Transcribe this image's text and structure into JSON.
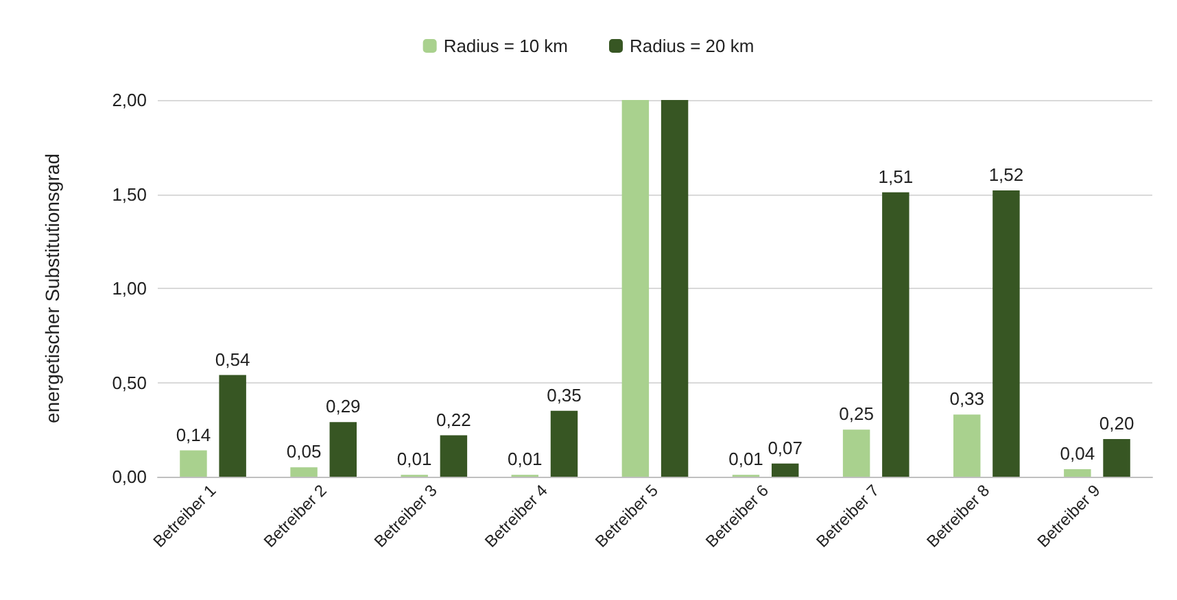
{
  "chart_data": {
    "type": "bar",
    "ylabel": "energetischer Substitutionsgrad",
    "categories": [
      "Betreiber 1",
      "Betreiber 2",
      "Betreiber 3",
      "Betreiber 4",
      "Betreiber 5",
      "Betreiber 6",
      "Betreiber 7",
      "Betreiber 8",
      "Betreiber 9"
    ],
    "series": [
      {
        "name": "Radius = 10 km",
        "color": "#a9d18e",
        "values": [
          0.14,
          0.05,
          0.01,
          0.01,
          2.0,
          0.01,
          0.25,
          0.33,
          0.04
        ],
        "value_labels": [
          "0,14",
          "0,05",
          "0,01",
          "0,01",
          null,
          "0,01",
          "0,25",
          "0,33",
          "0,04"
        ]
      },
      {
        "name": "Radius = 20 km",
        "color": "#375623",
        "values": [
          0.54,
          0.29,
          0.22,
          0.35,
          2.0,
          0.07,
          1.51,
          1.52,
          0.2
        ],
        "value_labels": [
          "0,54",
          "0,29",
          "0,22",
          "0,35",
          null,
          "0,07",
          "1,51",
          "1,52",
          "0,20"
        ]
      }
    ],
    "ylim": [
      0,
      2
    ],
    "yticks": [
      {
        "value": 0,
        "label": "0,00"
      },
      {
        "value": 0.5,
        "label": "0,50"
      },
      {
        "value": 1,
        "label": "1,00"
      },
      {
        "value": 1.5,
        "label": "1,50"
      },
      {
        "value": 2,
        "label": "2,00"
      }
    ],
    "grid": "y",
    "legend": "top"
  }
}
